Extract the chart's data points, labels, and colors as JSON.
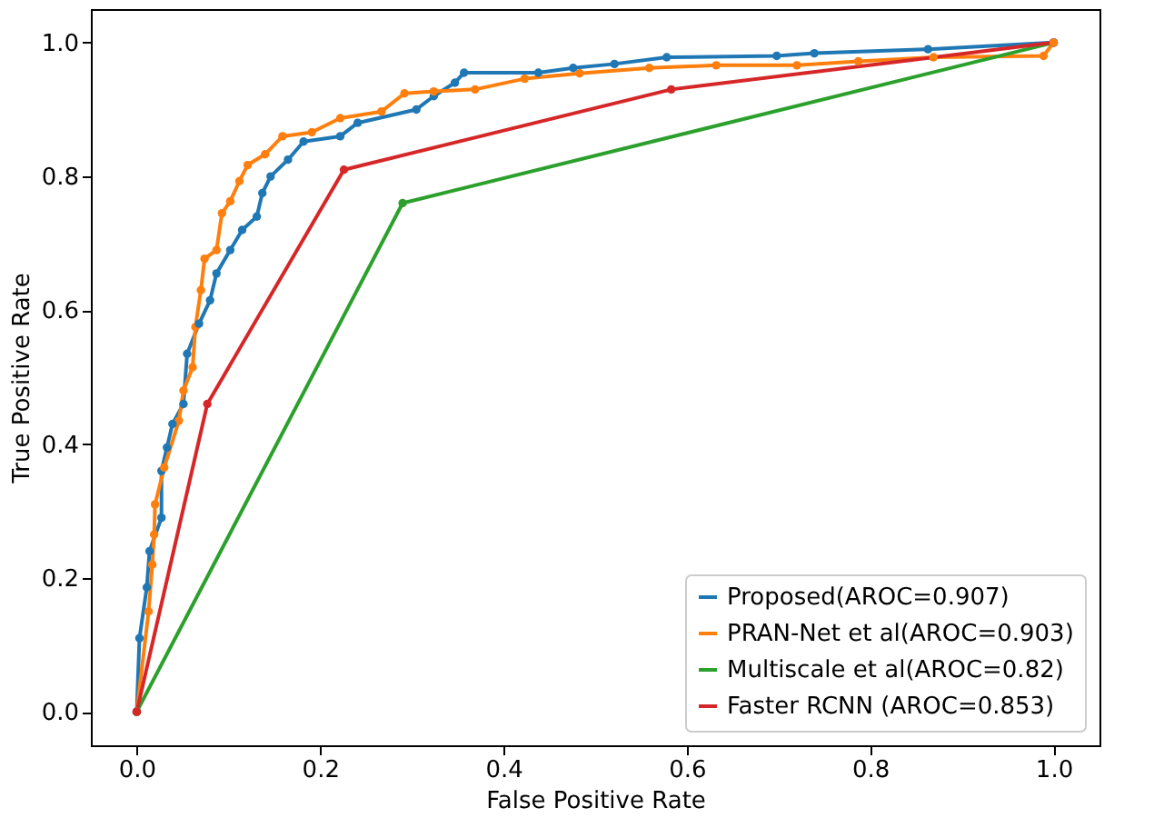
{
  "chart_data": {
    "type": "line",
    "xlabel": "False Positive Rate",
    "ylabel": "True Positive Rate",
    "xlim": [
      -0.05,
      1.05
    ],
    "ylim": [
      -0.05,
      1.05
    ],
    "xticks": [
      {
        "value": 0,
        "label": "0.0"
      },
      {
        "value": 0.2,
        "label": "0.2"
      },
      {
        "value": 0.4,
        "label": "0.4"
      },
      {
        "value": 0.6,
        "label": "0.6"
      },
      {
        "value": 0.8,
        "label": "0.8"
      },
      {
        "value": 1,
        "label": "1.0"
      }
    ],
    "yticks": [
      {
        "value": 0,
        "label": "0.0"
      },
      {
        "value": 0.2,
        "label": "0.2"
      },
      {
        "value": 0.4,
        "label": "0.4"
      },
      {
        "value": 0.6,
        "label": "0.6"
      },
      {
        "value": 0.8,
        "label": "0.8"
      },
      {
        "value": 1,
        "label": "1.0"
      }
    ],
    "grid": false,
    "legend": "bottom right",
    "marker": "circle",
    "line_style": "solid",
    "series": [
      {
        "name": "Proposed(AROC=0.907)",
        "color": "#1f77b4",
        "x": [
          0,
          0.003,
          0.011,
          0.014,
          0.027,
          0.027,
          0.033,
          0.039,
          0.051,
          0.055,
          0.068,
          0.08,
          0.087,
          0.102,
          0.115,
          0.131,
          0.137,
          0.146,
          0.165,
          0.182,
          0.222,
          0.241,
          0.305,
          0.324,
          0.347,
          0.357,
          0.438,
          0.476,
          0.521,
          0.578,
          0.698,
          0.739,
          0.863,
          1
        ],
        "values": [
          0,
          0.11,
          0.186,
          0.24,
          0.29,
          0.36,
          0.395,
          0.43,
          0.46,
          0.535,
          0.58,
          0.615,
          0.655,
          0.69,
          0.72,
          0.74,
          0.775,
          0.8,
          0.825,
          0.852,
          0.86,
          0.88,
          0.9,
          0.92,
          0.94,
          0.955,
          0.955,
          0.962,
          0.968,
          0.978,
          0.98,
          0.984,
          0.99,
          1
        ]
      },
      {
        "name": "PRAN-Net et al(AROC=0.903)",
        "color": "#ff7f0e",
        "x": [
          0,
          0.013,
          0.017,
          0.019,
          0.02,
          0.03,
          0.046,
          0.051,
          0.061,
          0.064,
          0.07,
          0.074,
          0.087,
          0.093,
          0.102,
          0.112,
          0.121,
          0.14,
          0.159,
          0.191,
          0.222,
          0.267,
          0.292,
          0.324,
          0.369,
          0.423,
          0.483,
          0.559,
          0.632,
          0.72,
          0.787,
          0.869,
          0.989,
          1
        ],
        "values": [
          0,
          0.15,
          0.22,
          0.265,
          0.31,
          0.365,
          0.435,
          0.48,
          0.515,
          0.575,
          0.63,
          0.677,
          0.69,
          0.745,
          0.763,
          0.793,
          0.817,
          0.833,
          0.86,
          0.866,
          0.887,
          0.897,
          0.924,
          0.927,
          0.93,
          0.946,
          0.954,
          0.962,
          0.966,
          0.966,
          0.972,
          0.978,
          0.98,
          1
        ]
      },
      {
        "name": "Multiscale et al(AROC=0.82)",
        "color": "#2ca02c",
        "x": [
          0,
          0.29,
          1
        ],
        "values": [
          0,
          0.76,
          1
        ]
      },
      {
        "name": "Faster RCNN (AROC=0.853)",
        "color": "#d62728",
        "x": [
          0,
          0.077,
          0.226,
          0.583,
          1
        ],
        "values": [
          0,
          0.46,
          0.81,
          0.93,
          1
        ]
      }
    ]
  }
}
